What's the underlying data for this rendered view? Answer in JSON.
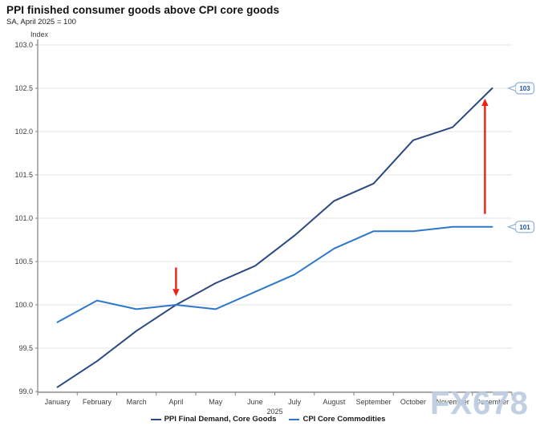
{
  "header": {
    "title": "PPI finished consumer goods above CPI core goods",
    "subtitle": "SA, April 2025 = 100"
  },
  "watermark": "FX678",
  "chart_data": {
    "type": "line",
    "x": [
      "January",
      "February",
      "March",
      "April",
      "May",
      "June",
      "July",
      "August",
      "September",
      "October",
      "November",
      "December"
    ],
    "x_group_label": "2025",
    "ylabel": "Index",
    "ylim": [
      99.0,
      103.0
    ],
    "ytick_step": 0.5,
    "yticks": [
      "99.0",
      "99.5",
      "100.0",
      "100.5",
      "101.0",
      "101.5",
      "102.0",
      "102.5",
      "103.0"
    ],
    "grid": true,
    "legend_position": "bottom",
    "series": [
      {
        "name": "PPI Final Demand, Core Goods",
        "color": "#2a4a80",
        "values": [
          99.05,
          99.35,
          99.7,
          100.0,
          100.25,
          100.45,
          100.8,
          101.2,
          101.4,
          101.9,
          102.05,
          102.5
        ]
      },
      {
        "name": "CPI Core Commodities",
        "color": "#2e78cc",
        "values": [
          99.8,
          100.05,
          99.95,
          100.0,
          99.95,
          100.15,
          100.35,
          100.65,
          100.85,
          100.85,
          100.9,
          100.9
        ]
      }
    ],
    "annotations": {
      "arrow_color": "#ee2012",
      "arrows": [
        {
          "direction": "down",
          "x_category": "April",
          "x_offset": 0,
          "from_value": 100.43,
          "to_value": 100.1
        },
        {
          "direction": "up",
          "x_category": "December",
          "x_offset": -9,
          "from_value": 101.05,
          "to_value": 102.38
        }
      ],
      "end_labels": [
        {
          "series_index": 0,
          "label": "103"
        },
        {
          "series_index": 1,
          "label": "101"
        }
      ],
      "callout_border_color": "#8fb0d4",
      "callout_text_color": "#1d4f9c"
    }
  }
}
